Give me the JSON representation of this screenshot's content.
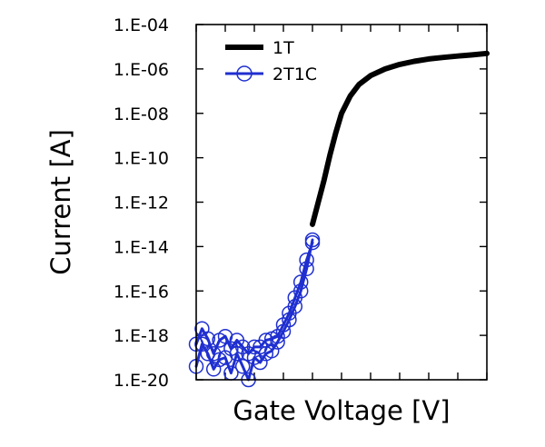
{
  "chart_data": {
    "type": "line",
    "title": "",
    "xlabel": "Gate Voltage [V]",
    "ylabel": "Current [A]",
    "y_scale": "log",
    "ylim": [
      1e-20,
      0.0001
    ],
    "xlim": [
      0,
      1
    ],
    "x_ticks_count": 11,
    "y_ticks": [
      {
        "value": 0.0001,
        "label": "1.E-04"
      },
      {
        "value": 1e-06,
        "label": "1.E-06"
      },
      {
        "value": 1e-08,
        "label": "1.E-08"
      },
      {
        "value": 1e-10,
        "label": "1.E-10"
      },
      {
        "value": 1e-12,
        "label": "1.E-12"
      },
      {
        "value": 1e-14,
        "label": "1.E-14"
      },
      {
        "value": 1e-16,
        "label": "1.E-16"
      },
      {
        "value": 1e-18,
        "label": "1.E-18"
      },
      {
        "value": 1e-20,
        "label": "1.E-20"
      }
    ],
    "grid": false,
    "legend_position": "top-left",
    "series": [
      {
        "name": "1T",
        "color": "#000000",
        "marker": "none",
        "x": [
          0.4,
          0.42,
          0.44,
          0.46,
          0.48,
          0.5,
          0.53,
          0.56,
          0.6,
          0.65,
          0.7,
          0.75,
          0.8,
          0.85,
          0.9,
          0.95,
          1.0
        ],
        "y": [
          1e-13,
          1e-12,
          1e-11,
          1.3e-10,
          1.3e-09,
          1e-08,
          6e-08,
          2e-07,
          5e-07,
          1e-06,
          1.6e-06,
          2.2e-06,
          2.8e-06,
          3.3e-06,
          3.8e-06,
          4.3e-06,
          5e-06
        ]
      },
      {
        "name": "2T1C",
        "color": "#1f2fd0",
        "marker": "circle",
        "x": [
          0.0,
          0.02,
          0.04,
          0.06,
          0.08,
          0.1,
          0.12,
          0.14,
          0.16,
          0.18,
          0.2,
          0.22,
          0.24,
          0.26,
          0.28,
          0.3,
          0.32,
          0.34,
          0.36,
          0.38,
          0.4
        ],
        "y": [
          4e-20,
          4e-19,
          1.5e-19,
          3e-20,
          8e-20,
          1e-19,
          2e-20,
          1.5e-19,
          4e-20,
          1e-20,
          1e-19,
          6e-20,
          1.5e-19,
          2e-19,
          5e-19,
          1.5e-18,
          5e-18,
          2e-17,
          1e-16,
          1e-15,
          2e-14
        ]
      },
      {
        "name": "",
        "color": "#1f2fd0",
        "marker": "circle",
        "x": [
          0.0,
          0.02,
          0.04,
          0.06,
          0.08,
          0.1,
          0.12,
          0.14,
          0.16,
          0.18,
          0.2,
          0.22,
          0.24,
          0.26,
          0.28,
          0.3,
          0.32,
          0.34,
          0.36,
          0.38,
          0.4
        ],
        "y": [
          4e-19,
          2e-18,
          7e-19,
          1.5e-19,
          6e-19,
          9e-19,
          2.5e-19,
          6e-19,
          3e-19,
          1.5e-19,
          3e-19,
          3e-19,
          6e-19,
          7e-19,
          9e-19,
          3e-18,
          1e-17,
          5e-17,
          2.5e-16,
          2.5e-15,
          1.5e-14
        ]
      }
    ]
  }
}
